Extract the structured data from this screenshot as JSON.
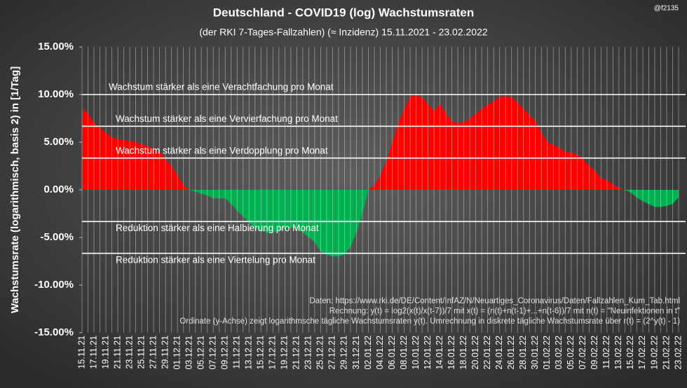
{
  "chart_data": {
    "type": "area",
    "title": "Deutschland - COVID19  (log) Wachstumsraten",
    "subtitle": "(der RKI 7-Tages-Fallzahlen) (≈ Inzidenz) 15.11.2021 - 23.02.2022",
    "ylabel": "Wachstumsrate (logarithmisch, basis 2) in [1/Tag]",
    "author": "@f2135",
    "notes": [
      "Daten: https://www.rki.de/DE/Content/InfAZ/N/Neuartiges_Coronavirus/Daten/Fallzahlen_Kum_Tab.html",
      "Rechnung: y(t) = log2(x(t)/x(t-7))/7 mit x(t) = (n(t)+n(t-1)+...+n(t-6))/7 mit n(t) = \"Neuinfektionen in t\"",
      "Ordinate (y-Achse) zeigt logarithmsche tägliche Wachstumsraten y(t). Umrechnung in diskrete tägliche Wachstumsrate über r(t) = (2^y(t) - 1)"
    ],
    "categories": [
      "15.11.21",
      null,
      "17.11.21",
      null,
      "19.11.21",
      null,
      "21.11.21",
      null,
      "23.11.21",
      null,
      "25.11.21",
      null,
      "27.11.21",
      null,
      "29.11.21",
      null,
      "01.12.21",
      null,
      "03.12.21",
      null,
      "05.12.21",
      null,
      "07.12.21",
      null,
      "09.12.21",
      null,
      "11.12.21",
      null,
      "13.12.21",
      null,
      "15.12.21",
      null,
      "17.12.21",
      null,
      "19.12.21",
      null,
      "21.12.21",
      null,
      "23.12.21",
      null,
      "25.12.21",
      null,
      "27.12.21",
      null,
      "29.12.21",
      null,
      "31.12.21",
      null,
      "02.01.22",
      null,
      "04.01.22",
      null,
      "06.01.22",
      null,
      "08.01.22",
      null,
      "10.01.22",
      null,
      "12.01.22",
      null,
      "14.01.22",
      null,
      "16.01.22",
      null,
      "18.01.22",
      null,
      "20.01.22",
      null,
      "22.01.22",
      null,
      "24.01.22",
      null,
      "26.01.22",
      null,
      "28.01.22",
      null,
      "30.01.22",
      null,
      "01.02.22",
      null,
      "03.02.22",
      null,
      "05.02.22",
      null,
      "07.02.22",
      null,
      "09.02.22",
      null,
      "11.02.22",
      null,
      "13.02.22",
      null,
      "15.02.22",
      null,
      "17.02.22",
      null,
      "19.02.22",
      null,
      "21.02.22",
      null,
      "23.02.22"
    ],
    "values": [
      8.5,
      8.0,
      7.0,
      6.5,
      6.0,
      5.5,
      5.3,
      5.2,
      5.1,
      5.0,
      4.8,
      4.6,
      4.3,
      4.0,
      3.2,
      2.5,
      1.5,
      0.5,
      0.0,
      -0.2,
      -0.4,
      -0.6,
      -0.9,
      -0.9,
      -0.9,
      -1.5,
      -2.2,
      -2.8,
      -3.5,
      -4.0,
      -4.3,
      -4.5,
      -4.5,
      -4.3,
      -4.1,
      -4.0,
      -4.1,
      -4.5,
      -5.0,
      -5.5,
      -6.5,
      -6.8,
      -7.0,
      -7.0,
      -6.8,
      -6.0,
      -4.5,
      -2.5,
      0.0,
      0.5,
      1.5,
      3.0,
      5.0,
      7.0,
      8.5,
      9.8,
      9.9,
      9.7,
      9.0,
      8.3,
      9.0,
      8.0,
      7.2,
      7.0,
      7.1,
      7.5,
      8.0,
      8.5,
      9.0,
      9.3,
      9.8,
      9.8,
      9.7,
      9.2,
      8.5,
      7.8,
      7.2,
      6.0,
      5.0,
      4.7,
      4.4,
      4.0,
      3.9,
      3.7,
      3.2,
      2.5,
      2.0,
      1.2,
      1.0,
      0.6,
      0.2,
      0.0,
      -0.3,
      -0.8,
      -1.2,
      -1.5,
      -1.8,
      -1.8,
      -1.7,
      -1.5,
      -0.8
    ],
    "positive_color": "#ff0000",
    "negative_color": "#00b050",
    "ylim": [
      -15,
      15
    ],
    "yticks": [
      {
        "value": 15,
        "label": "15.00%"
      },
      {
        "value": 10,
        "label": "10.00%"
      },
      {
        "value": 5,
        "label": "5.00%"
      },
      {
        "value": 0,
        "label": "0.00%"
      },
      {
        "value": -5,
        "label": "-5.00%"
      },
      {
        "value": -10,
        "label": "-10.00%"
      },
      {
        "value": -15,
        "label": "-15.00%"
      }
    ],
    "reference_lines": [
      {
        "value": 10,
        "label": "Wachstum stärker als eine Verachtfachung pro Monat"
      },
      {
        "value": 6.67,
        "label": "Wachstum stärker als eine Vervierfachung pro Monat"
      },
      {
        "value": 3.33,
        "label": "Wachstum stärker als eine Verdopplung pro Monat"
      },
      {
        "value": -3.33,
        "label": "Reduktion stärker als eine Halbierung pro Monat"
      },
      {
        "value": -6.67,
        "label": "Reduktion stärker als eine Viertelung pro Monat"
      }
    ],
    "grid": true
  }
}
